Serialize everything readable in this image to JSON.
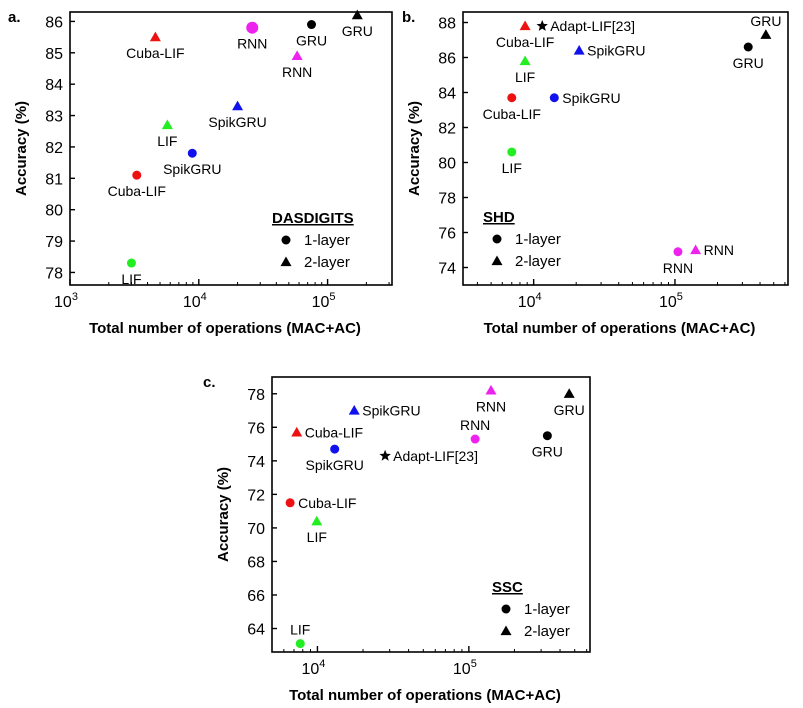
{
  "figure_title": "",
  "chart_data": [
    {
      "id": "a",
      "panel_label": "a.",
      "type": "scatter",
      "title": "",
      "xlabel": "Total number of operations (MAC+AC)",
      "ylabel": "Accuracy (%)",
      "xscale": "log",
      "xlim": [
        1000,
        316228
      ],
      "ylim": [
        77.6,
        86.3
      ],
      "x_ticks": [
        {
          "value": 1000,
          "base": "10",
          "exp": "3"
        },
        {
          "value": 10000,
          "base": "10",
          "exp": "4"
        },
        {
          "value": 100000,
          "base": "10",
          "exp": "5"
        }
      ],
      "y_ticks": [
        78,
        79,
        80,
        81,
        82,
        83,
        84,
        85,
        86
      ],
      "grid": false,
      "legend": {
        "title": "DASDIGITS",
        "placement": "bottom-right",
        "entries": [
          {
            "marker": "circle",
            "label": "1-layer"
          },
          {
            "marker": "triangle",
            "label": "2-layer"
          }
        ]
      },
      "points": [
        {
          "label": "LIF",
          "x": 3000,
          "y": 78.3,
          "marker": "circle",
          "color": "#22ee22",
          "label_pos": "below"
        },
        {
          "label": "Cuba-LIF",
          "x": 3300,
          "y": 81.1,
          "marker": "circle",
          "color": "#ee1111",
          "label_pos": "below"
        },
        {
          "label": "SpikGRU",
          "x": 8900,
          "y": 81.8,
          "marker": "circle",
          "color": "#1111ee",
          "label_pos": "below"
        },
        {
          "label": "RNN",
          "x": 26000,
          "y": 85.8,
          "marker": "circle",
          "color": "#ee22ee",
          "label_pos": "below",
          "large": true
        },
        {
          "label": "GRU",
          "x": 75000,
          "y": 85.9,
          "marker": "circle",
          "color": "#000000",
          "label_pos": "below"
        },
        {
          "label": "Cuba-LIF",
          "x": 4600,
          "y": 85.5,
          "marker": "triangle",
          "color": "#ee1111",
          "label_pos": "below"
        },
        {
          "label": "LIF",
          "x": 5700,
          "y": 82.7,
          "marker": "triangle",
          "color": "#22ee22",
          "label_pos": "below"
        },
        {
          "label": "SpikGRU",
          "x": 20000,
          "y": 83.3,
          "marker": "triangle",
          "color": "#1111ee",
          "label_pos": "below"
        },
        {
          "label": "RNN",
          "x": 58000,
          "y": 84.9,
          "marker": "triangle",
          "color": "#ee22ee",
          "label_pos": "below"
        },
        {
          "label": "GRU",
          "x": 170000,
          "y": 86.2,
          "marker": "triangle",
          "color": "#000000",
          "label_pos": "below"
        }
      ]
    },
    {
      "id": "b",
      "panel_label": "b.",
      "type": "scatter",
      "title": "",
      "xlabel": "Total number of operations (MAC+AC)",
      "ylabel": "Accuracy (%)",
      "xscale": "log",
      "xlim": [
        3162,
        631000
      ],
      "ylim": [
        73,
        88.6
      ],
      "x_ticks": [
        {
          "value": 10000,
          "base": "10",
          "exp": "4"
        },
        {
          "value": 100000,
          "base": "10",
          "exp": "5"
        }
      ],
      "y_ticks": [
        74,
        76,
        78,
        80,
        82,
        84,
        86,
        88
      ],
      "grid": false,
      "legend": {
        "title": "SHD",
        "placement": "bottom-left",
        "entries": [
          {
            "marker": "circle",
            "label": "1-layer"
          },
          {
            "marker": "triangle",
            "label": "2-layer"
          }
        ]
      },
      "points": [
        {
          "label": "LIF",
          "x": 7000,
          "y": 80.6,
          "marker": "circle",
          "color": "#22ee22",
          "label_pos": "below"
        },
        {
          "label": "Cuba-LIF",
          "x": 7000,
          "y": 83.7,
          "marker": "circle",
          "color": "#ee1111",
          "label_pos": "below"
        },
        {
          "label": "SpikGRU",
          "x": 14000,
          "y": 83.7,
          "marker": "circle",
          "color": "#1111ee",
          "label_pos": "right"
        },
        {
          "label": "RNN",
          "x": 105000,
          "y": 74.9,
          "marker": "circle",
          "color": "#ee22ee",
          "label_pos": "below"
        },
        {
          "label": "GRU",
          "x": 330000,
          "y": 86.6,
          "marker": "circle",
          "color": "#000000",
          "label_pos": "below"
        },
        {
          "label": "Cuba-LIF",
          "x": 8700,
          "y": 87.8,
          "marker": "triangle",
          "color": "#ee1111",
          "label_pos": "below"
        },
        {
          "label": "LIF",
          "x": 8700,
          "y": 85.8,
          "marker": "triangle",
          "color": "#22ee22",
          "label_pos": "below"
        },
        {
          "label": "SpikGRU",
          "x": 21000,
          "y": 86.4,
          "marker": "triangle",
          "color": "#1111ee",
          "label_pos": "right"
        },
        {
          "label": "RNN",
          "x": 140000,
          "y": 75.0,
          "marker": "triangle",
          "color": "#ee22ee",
          "label_pos": "right"
        },
        {
          "label": "GRU",
          "x": 440000,
          "y": 87.3,
          "marker": "triangle",
          "color": "#000000",
          "label_pos": "above"
        },
        {
          "label": "Adapt-LIF[23]",
          "x": 11500,
          "y": 87.8,
          "marker": "star",
          "color": "#000000",
          "label_pos": "right"
        }
      ]
    },
    {
      "id": "c",
      "panel_label": "c.",
      "type": "scatter",
      "title": "",
      "xlabel": "Total number of operations (MAC+AC)",
      "ylabel": "Accuracy (%)",
      "xscale": "log",
      "xlim": [
        5011,
        631000
      ],
      "ylim": [
        62.6,
        79
      ],
      "x_ticks": [
        {
          "value": 10000,
          "base": "10",
          "exp": "4"
        },
        {
          "value": 100000,
          "base": "10",
          "exp": "5"
        }
      ],
      "y_ticks": [
        64,
        66,
        68,
        70,
        72,
        74,
        76,
        78
      ],
      "grid": false,
      "legend": {
        "title": "SSC",
        "placement": "bottom-right",
        "entries": [
          {
            "marker": "circle",
            "label": "1-layer"
          },
          {
            "marker": "triangle",
            "label": "2-layer"
          }
        ]
      },
      "points": [
        {
          "label": "LIF",
          "x": 7700,
          "y": 63.1,
          "marker": "circle",
          "color": "#22ee22",
          "label_pos": "above"
        },
        {
          "label": "Cuba-LIF",
          "x": 6600,
          "y": 71.5,
          "marker": "circle",
          "color": "#ee1111",
          "label_pos": "right"
        },
        {
          "label": "SpikGRU",
          "x": 13000,
          "y": 74.7,
          "marker": "circle",
          "color": "#1111ee",
          "label_pos": "below"
        },
        {
          "label": "RNN",
          "x": 110000,
          "y": 75.3,
          "marker": "circle",
          "color": "#ee22ee",
          "label_pos": "above"
        },
        {
          "label": "GRU",
          "x": 330000,
          "y": 75.5,
          "marker": "circle",
          "color": "#000000",
          "label_pos": "below"
        },
        {
          "label": "Cuba-LIF",
          "x": 7300,
          "y": 75.7,
          "marker": "triangle",
          "color": "#ee1111",
          "label_pos": "right"
        },
        {
          "label": "LIF",
          "x": 9900,
          "y": 70.4,
          "marker": "triangle",
          "color": "#22ee22",
          "label_pos": "below"
        },
        {
          "label": "SpikGRU",
          "x": 17500,
          "y": 77.0,
          "marker": "triangle",
          "color": "#1111ee",
          "label_pos": "right"
        },
        {
          "label": "RNN",
          "x": 140000,
          "y": 78.2,
          "marker": "triangle",
          "color": "#ee22ee",
          "label_pos": "below"
        },
        {
          "label": "GRU",
          "x": 460000,
          "y": 78.0,
          "marker": "triangle",
          "color": "#000000",
          "label_pos": "below"
        },
        {
          "label": "Adapt-LIF[23]",
          "x": 28000,
          "y": 74.3,
          "marker": "star",
          "color": "#000000",
          "label_pos": "right"
        }
      ]
    }
  ]
}
